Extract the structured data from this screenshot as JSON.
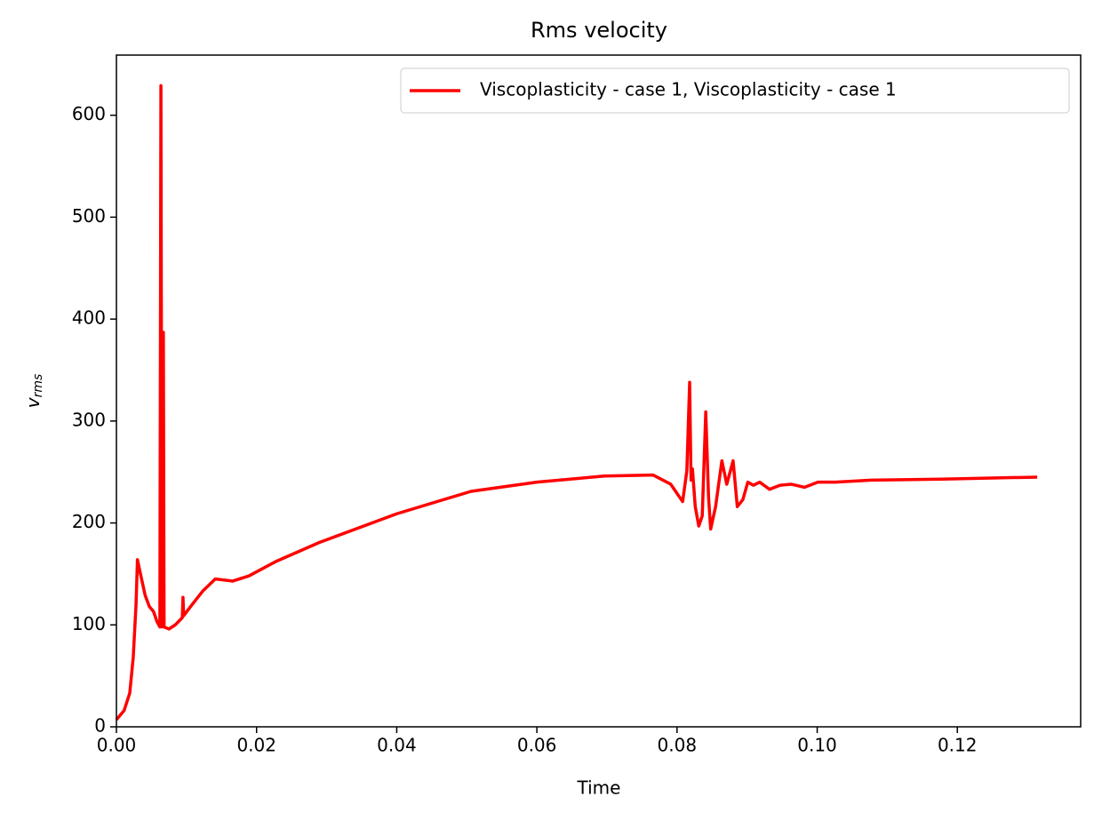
{
  "chart_data": {
    "type": "line",
    "title": "Rms velocity",
    "xlabel": "Time",
    "ylabel": {
      "text": "v",
      "subscript": "rms"
    },
    "x": [
      0,
      0.0011,
      0.0019,
      0.0024,
      0.0028,
      0.003,
      0.0034,
      0.0041,
      0.0047,
      0.0053,
      0.0058,
      0.0062,
      0.00635,
      0.0065,
      0.0067,
      0.0068,
      0.0075,
      0.0084,
      0.0094,
      0.0095,
      0.0096,
      0.0107,
      0.0123,
      0.0141,
      0.0166,
      0.0189,
      0.0227,
      0.029,
      0.04,
      0.0506,
      0.06,
      0.0696,
      0.0766,
      0.0791,
      0.0808,
      0.0814,
      0.0818,
      0.082,
      0.0822,
      0.0826,
      0.0831,
      0.0836,
      0.0841,
      0.0845,
      0.0848,
      0.0855,
      0.0864,
      0.0871,
      0.088,
      0.0886,
      0.0894,
      0.0901,
      0.0909,
      0.0918,
      0.0932,
      0.0947,
      0.0963,
      0.0982,
      0.1001,
      0.1026,
      0.1077,
      0.1178,
      0.1314
    ],
    "series": [
      {
        "name": "Viscoplasticity - case 1, Viscoplasticity - case 1",
        "color": "#ff0000",
        "values": [
          7,
          16,
          33,
          68,
          120,
          164,
          151,
          129,
          118,
          113,
          103,
          98,
          629,
          98,
          387,
          98,
          96,
          100,
          107,
          127,
          109,
          119,
          133,
          145,
          143,
          148,
          162,
          181,
          209,
          231,
          240,
          246,
          247,
          238,
          221,
          251,
          338,
          242,
          253,
          216,
          197,
          207,
          309,
          225,
          194,
          216,
          261,
          238,
          261,
          216,
          223,
          240,
          237,
          240,
          233,
          237,
          238,
          235,
          240,
          240,
          242,
          243,
          245
        ]
      }
    ],
    "xlim": [
      0,
      0.1376
    ],
    "ylim": [
      0,
      659
    ],
    "xticks": [
      {
        "value": 0,
        "label": "0.00"
      },
      0.02,
      0.04,
      0.06,
      0.08,
      {
        "value": 0.1,
        "label": "0.10"
      },
      0.12
    ],
    "yticks": [
      0,
      100,
      200,
      300,
      400,
      500,
      600
    ],
    "legend": "upper right"
  }
}
